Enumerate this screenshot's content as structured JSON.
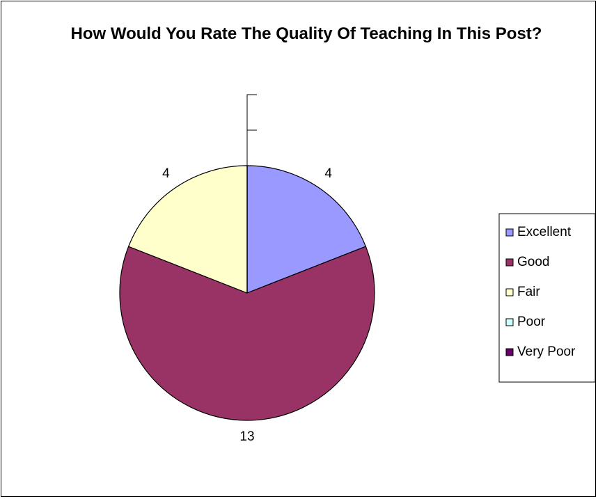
{
  "chart_data": {
    "type": "pie",
    "title": "How Would You Rate The Quality Of Teaching In This Post?",
    "categories": [
      "Excellent",
      "Good",
      "Fair",
      "Poor",
      "Very Poor"
    ],
    "values": [
      4,
      13,
      4,
      0,
      0
    ],
    "colors": [
      "#9999ff",
      "#993366",
      "#ffffcc",
      "#ccffff",
      "#660066"
    ],
    "legend": "right"
  }
}
